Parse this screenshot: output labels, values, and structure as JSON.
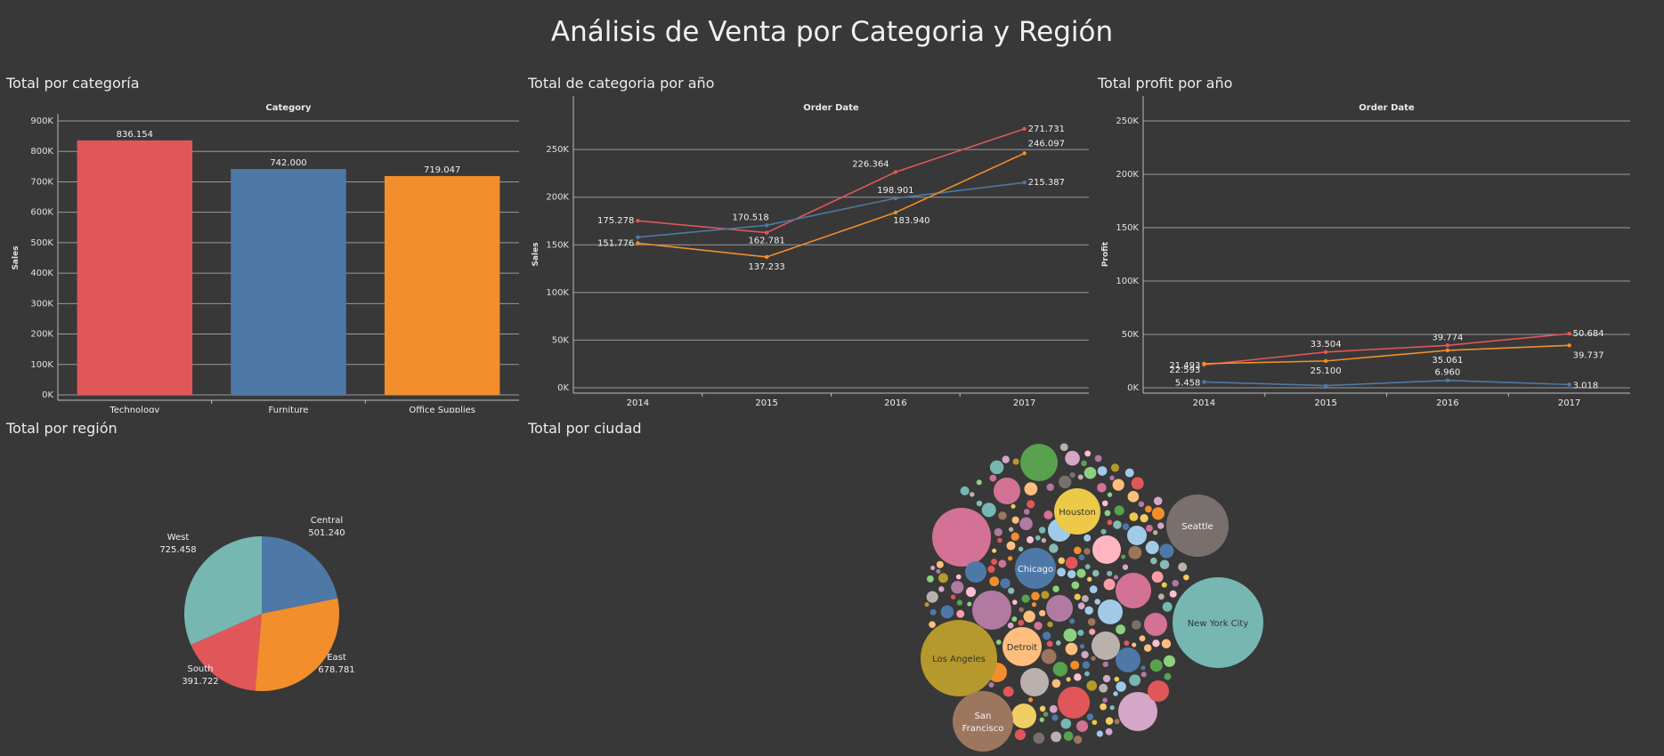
{
  "dashboard": {
    "title": "Análisis de Venta por Categoria y Región"
  },
  "sheets": {
    "category": "Total por categoría",
    "category_year": "Total de categoria por año",
    "profit_year": "Total profit por año",
    "region": "Total por región",
    "city": "Total por ciudad"
  },
  "colors": {
    "technology": "#e15759",
    "furniture": "#4e79a7",
    "office_supplies": "#f28e2b",
    "gridline": "#9a9a9a",
    "background": "#383838"
  },
  "chart_data": [
    {
      "id": "category",
      "type": "bar",
      "header": "Category",
      "ylabel": "Sales",
      "categories": [
        "Technology",
        "Furniture",
        "Office Supplies"
      ],
      "values": [
        836154,
        742000,
        719047
      ],
      "value_labels": [
        "836.154",
        "742.000",
        "719.047"
      ],
      "colors": [
        "#e15759",
        "#4e79a7",
        "#f28e2b"
      ],
      "ylim": [
        0,
        900000
      ],
      "yticks": [
        0,
        100000,
        200000,
        300000,
        400000,
        500000,
        600000,
        700000,
        800000,
        900000
      ],
      "ytick_labels": [
        "0K",
        "100K",
        "200K",
        "300K",
        "400K",
        "500K",
        "600K",
        "700K",
        "800K",
        "900K"
      ],
      "grid": true
    },
    {
      "id": "category_year",
      "type": "line",
      "header": "Order Date",
      "ylabel": "Sales",
      "x": [
        "2014",
        "2015",
        "2016",
        "2017"
      ],
      "series": [
        {
          "color": "#e15759",
          "values": [
            175278,
            162781,
            226364,
            271731
          ],
          "labels": [
            "175.278",
            "162.781",
            "226.364",
            "271.731"
          ]
        },
        {
          "color": "#4e79a7",
          "values": [
            158000,
            170518,
            198901,
            215387
          ],
          "labels": [
            "",
            "170.518",
            "198.901",
            "215.387"
          ]
        },
        {
          "color": "#f28e2b",
          "values": [
            151776,
            137233,
            183940,
            246097
          ],
          "labels": [
            "151.776",
            "137.233",
            "183.940",
            "246.097"
          ]
        }
      ],
      "ylim": [
        0,
        280000
      ],
      "yticks": [
        0,
        50000,
        100000,
        150000,
        200000,
        250000
      ],
      "ytick_labels": [
        "0K",
        "50K",
        "100K",
        "150K",
        "200K",
        "250K"
      ],
      "grid": true
    },
    {
      "id": "profit_year",
      "type": "line",
      "header": "Order Date",
      "ylabel": "Profit",
      "x": [
        "2014",
        "2015",
        "2016",
        "2017"
      ],
      "series": [
        {
          "color": "#e15759",
          "values": [
            21493,
            33504,
            39774,
            50684
          ],
          "labels": [
            "21.493",
            "33.504",
            "39.774",
            "50.684"
          ]
        },
        {
          "color": "#f28e2b",
          "values": [
            22593,
            25100,
            35061,
            39737
          ],
          "labels": [
            "22.593",
            "25.100",
            "35.061",
            "39.737"
          ]
        },
        {
          "color": "#4e79a7",
          "values": [
            5458,
            2000,
            6960,
            3018
          ],
          "labels": [
            "5.458",
            "",
            "6.960",
            "3.018"
          ]
        }
      ],
      "ylim": [
        0,
        250000
      ],
      "yticks": [
        0,
        50000,
        100000,
        150000,
        200000,
        250000
      ],
      "ytick_labels": [
        "0K",
        "50K",
        "100K",
        "150K",
        "200K",
        "250K"
      ],
      "grid": true
    },
    {
      "id": "region",
      "type": "pie",
      "slices": [
        {
          "label": "Central",
          "value": 501240,
          "value_label": "501.240",
          "color": "#4e79a7"
        },
        {
          "label": "East",
          "value": 678781,
          "value_label": "678.781",
          "color": "#f28e2b"
        },
        {
          "label": "South",
          "value": 391722,
          "value_label": "391.722",
          "color": "#e15759"
        },
        {
          "label": "West",
          "value": 725458,
          "value_label": "725.458",
          "color": "#76b7b2"
        }
      ]
    },
    {
      "id": "city",
      "type": "bubble",
      "labeled": [
        {
          "label": "New York City",
          "color": "#76b7b2",
          "value": 256368
        },
        {
          "label": "Los Angeles",
          "color": "#b6992d",
          "value": 175851
        },
        {
          "label": "Seattle",
          "color": "#79706e",
          "value": 119541
        },
        {
          "label": "San Francisco",
          "color": "#9d7660",
          "value": 112669
        },
        {
          "label": "Houston",
          "color": "#edc948",
          "value": 64505
        },
        {
          "label": "Chicago",
          "color": "#4e79a7",
          "value": 48540
        },
        {
          "label": "Detroit",
          "color": "#ffbe7d",
          "value": 42446
        }
      ]
    }
  ]
}
